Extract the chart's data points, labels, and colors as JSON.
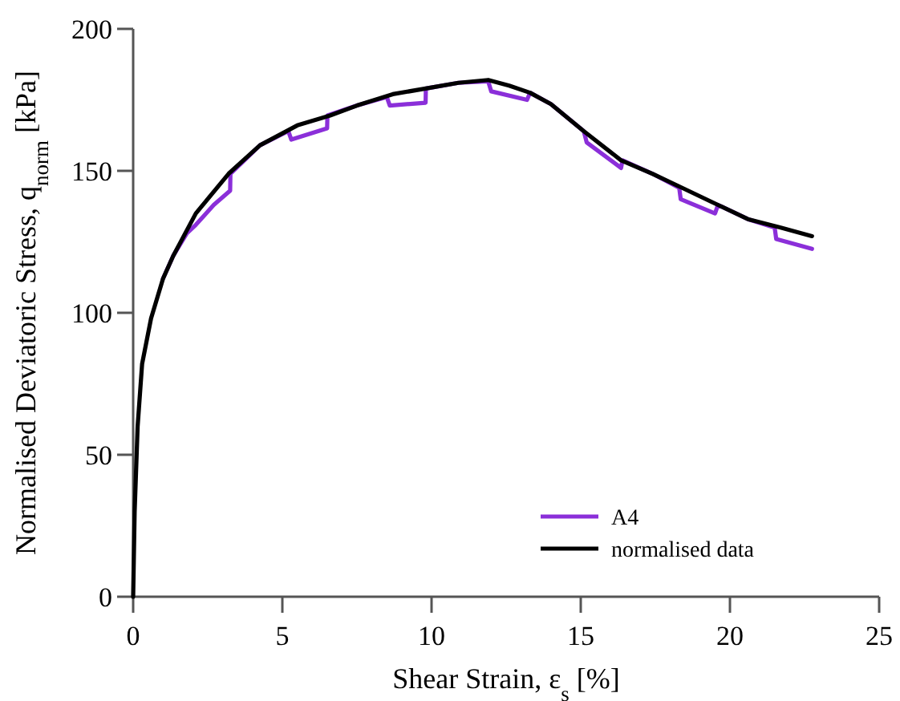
{
  "chart_data": {
    "type": "line",
    "xlabel": "Shear Strain, ε$_{s}$ [%]",
    "ylabel": "Normalised Deviatoric Stress, q$_{norm}$ [kPa]",
    "xlim": [
      0,
      25
    ],
    "xticks": [
      0,
      5,
      10,
      15,
      20,
      25
    ],
    "ylim": [
      0,
      200
    ],
    "yticks": [
      0,
      50,
      100,
      150,
      200
    ],
    "grid": false,
    "legend": "bottom right",
    "line_style": "solid",
    "marker": "none",
    "series": [
      {
        "name": "A4",
        "color": "#8b2fd9",
        "x": [
          1,
          1.34,
          1.8,
          2.1,
          2.7,
          3.25,
          3.26,
          4.25,
          5.2,
          5.3,
          6.5,
          6.51,
          7.5,
          8.5,
          8.6,
          9.8,
          9.81,
          10.9,
          11.9,
          12,
          13.2,
          13.3,
          14,
          15.1,
          15.2,
          16.35,
          16.4,
          17.4,
          18.3,
          18.35,
          19.5,
          19.6,
          20.6,
          21.5,
          21.55,
          22.75
        ],
        "values": [
          112,
          120,
          128,
          131,
          138,
          143,
          149,
          159,
          164,
          161,
          165,
          169.5,
          173,
          176,
          173,
          174,
          179,
          181,
          181.5,
          178,
          175,
          177.5,
          173.5,
          164,
          160,
          151,
          153.7,
          149,
          144,
          140,
          135,
          138,
          133,
          130,
          126,
          122.5
        ]
      },
      {
        "name": "normalised data",
        "color": "#000000",
        "x": [
          0,
          0.05,
          0.15,
          0.3,
          0.6,
          1,
          1.34,
          2.1,
          3.2,
          4.25,
          5.5,
          6.6,
          7.5,
          8.7,
          9.8,
          10.9,
          11.9,
          12.6,
          13.3,
          14,
          15.1,
          16.35,
          17.4,
          18.5,
          19.6,
          20.6,
          21.7,
          22.75
        ],
        "values": [
          0,
          30,
          60,
          82,
          98,
          112,
          120,
          135,
          149,
          159,
          166,
          169.5,
          173,
          177,
          179,
          181,
          182,
          180,
          177.5,
          173.5,
          164,
          153.7,
          149,
          143.5,
          138,
          133,
          130,
          127
        ]
      }
    ]
  }
}
